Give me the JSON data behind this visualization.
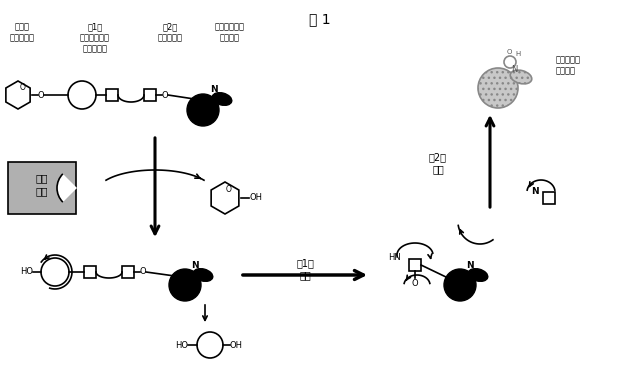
{
  "title": "図 1",
  "label_glycoside": "特定の\nグリコシド",
  "label_spacer1": "第1の\nフレキシブル\nスペーサー",
  "label_spacer2": "第2の\nスペーサー",
  "label_masked": "マスクされた\n発蛍光団",
  "label_activated": "活性化した\n発蛍光団",
  "label_enzyme": "標的\n酵素",
  "label_cleavage1": "第1の\n分裂",
  "label_cleavage2": "第2の\n分裂",
  "bg_color": "#ffffff",
  "black": "#000000"
}
